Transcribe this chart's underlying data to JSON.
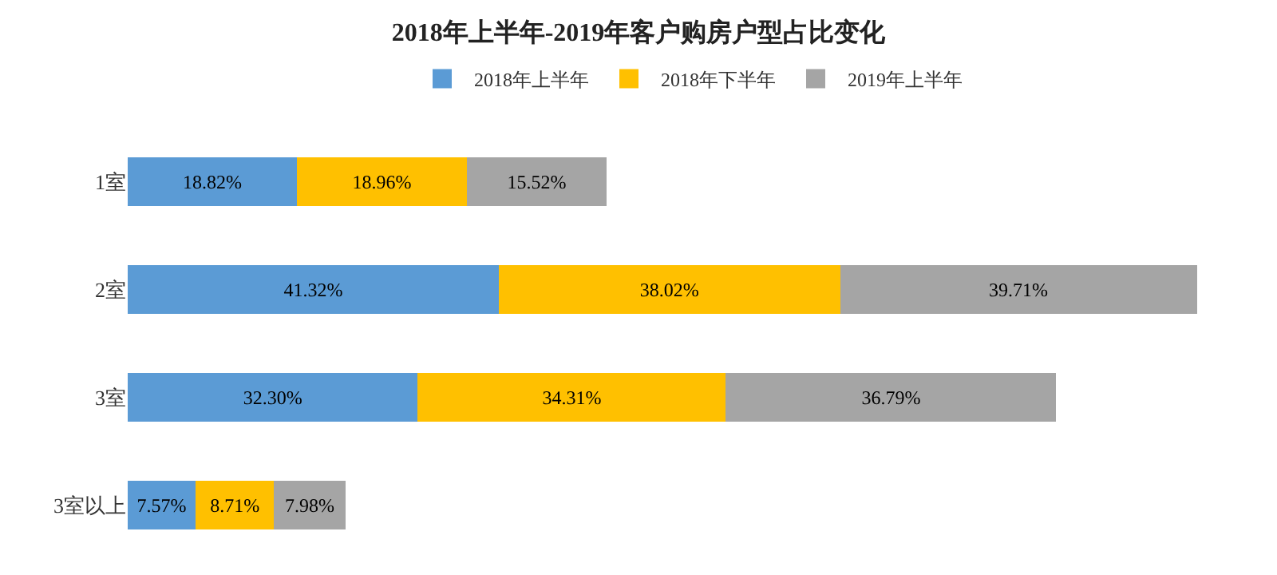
{
  "chart_data": {
    "type": "bar",
    "orientation": "horizontal",
    "stacked": true,
    "title": "2018年上半年-2019年客户购房户型占比变化",
    "categories": [
      "1室",
      "2室",
      "3室",
      "3室以上"
    ],
    "series": [
      {
        "name": "2018年上半年",
        "color": "#5b9bd5",
        "values": [
          18.82,
          41.32,
          32.3,
          7.57
        ],
        "value_labels": [
          "18.82%",
          "41.32%",
          "32.30%",
          "7.57%"
        ]
      },
      {
        "name": "2018年下半年",
        "color": "#ffc000",
        "values": [
          18.96,
          38.02,
          34.31,
          8.71
        ],
        "value_labels": [
          "18.96%",
          "38.02%",
          "34.31%",
          "8.71%"
        ]
      },
      {
        "name": "2019年上半年",
        "color": "#a5a5a5",
        "values": [
          15.52,
          39.71,
          36.79,
          7.98
        ],
        "value_labels": [
          "15.52%",
          "39.71%",
          "36.79%",
          "7.98%"
        ]
      }
    ],
    "legend": "top",
    "tick_labels": "y",
    "grid": false
  }
}
